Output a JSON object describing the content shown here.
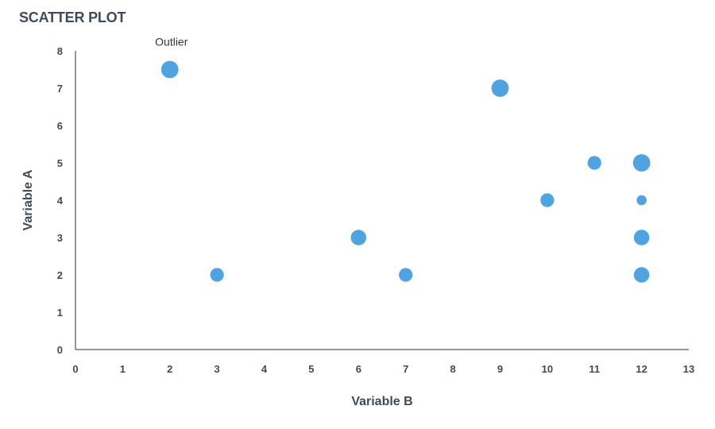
{
  "chart_data": {
    "type": "scatter",
    "title": "SCATTER PLOT",
    "xlabel": "Variable B",
    "ylabel": "Variable A",
    "xlim": [
      0,
      13
    ],
    "ylim": [
      0,
      8
    ],
    "xticks": [
      0,
      1,
      2,
      3,
      4,
      5,
      6,
      7,
      8,
      9,
      10,
      11,
      12,
      13
    ],
    "yticks": [
      0,
      1,
      2,
      3,
      4,
      5,
      6,
      7,
      8
    ],
    "grid": false,
    "marker_color": "#4fa3e0",
    "axis_color": "#555555",
    "text_color": "#3f4b5b",
    "points": [
      {
        "x": 2,
        "y": 7.5,
        "size": 3
      },
      {
        "x": 3,
        "y": 2,
        "size": 2
      },
      {
        "x": 6,
        "y": 3,
        "size": 2.5
      },
      {
        "x": 7,
        "y": 2,
        "size": 2
      },
      {
        "x": 9,
        "y": 7,
        "size": 3
      },
      {
        "x": 10,
        "y": 4,
        "size": 2
      },
      {
        "x": 11,
        "y": 5,
        "size": 2
      },
      {
        "x": 12,
        "y": 5,
        "size": 3
      },
      {
        "x": 12,
        "y": 4,
        "size": 1
      },
      {
        "x": 12,
        "y": 3,
        "size": 2.5
      },
      {
        "x": 12,
        "y": 2,
        "size": 2.5
      }
    ],
    "annotations": [
      {
        "text": "Outlier",
        "x": 2,
        "y": 7.5
      }
    ]
  }
}
